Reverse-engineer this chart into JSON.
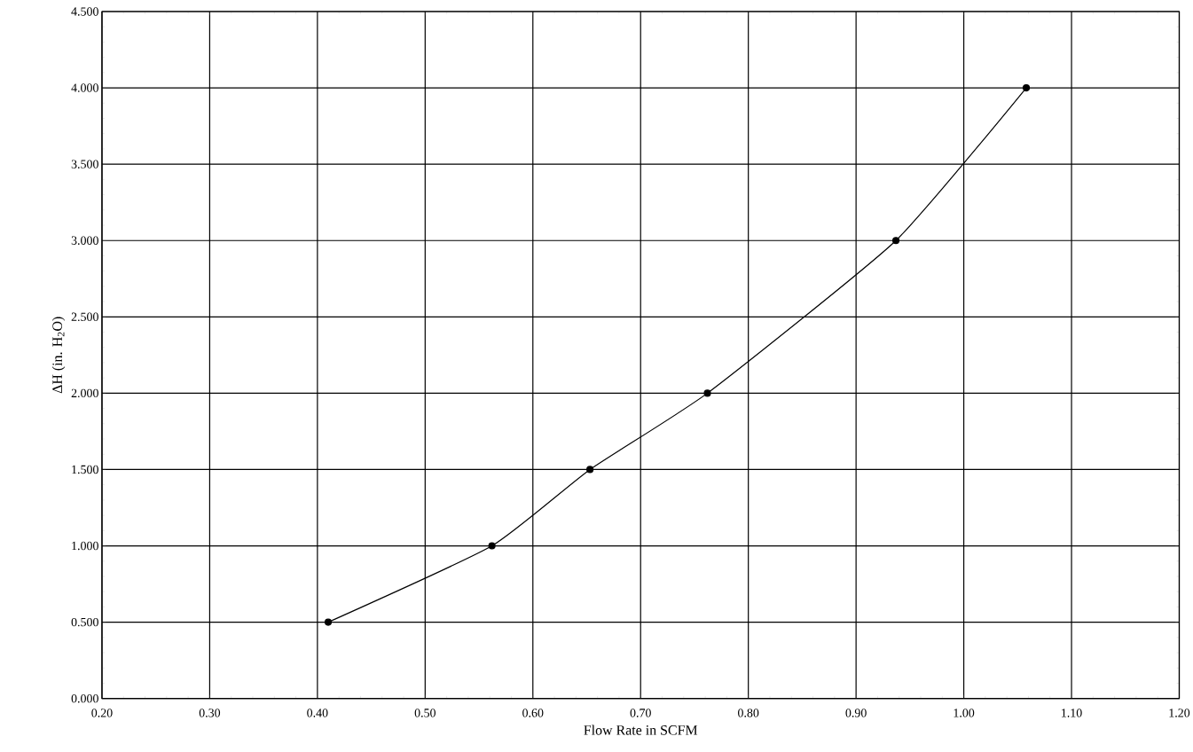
{
  "chart_data": {
    "type": "line",
    "xlabel": "Flow Rate in SCFM",
    "ylabel": "ΔH (in. H$_{2}$O)",
    "x": [
      0.41,
      0.562,
      0.653,
      0.762,
      0.937,
      1.058
    ],
    "series": [
      {
        "color": "#000000",
        "values": [
          0.5,
          1.0,
          1.5,
          2.0,
          3.0,
          4.0
        ]
      }
    ],
    "xlim": [
      0.2,
      1.2
    ],
    "xticks": [
      {
        "value": 0.2,
        "label": "0.20"
      },
      {
        "value": 0.3,
        "label": "0.30"
      },
      {
        "value": 0.4,
        "label": "0.40"
      },
      {
        "value": 0.5,
        "label": "0.50"
      },
      {
        "value": 0.6,
        "label": "0.60"
      },
      {
        "value": 0.7,
        "label": "0.70"
      },
      {
        "value": 0.8,
        "label": "0.80"
      },
      {
        "value": 0.9,
        "label": "0.90"
      },
      {
        "value": 1.0,
        "label": "1.00"
      },
      {
        "value": 1.1,
        "label": "1.10"
      },
      {
        "value": 1.2,
        "label": "1.20"
      }
    ],
    "ylim": [
      0,
      4.5
    ],
    "yticks": [
      {
        "value": 0,
        "label": "0.000"
      },
      {
        "value": 0.5,
        "label": "0.500"
      },
      {
        "value": 1.0,
        "label": "1.000"
      },
      {
        "value": 1.5,
        "label": "1.500"
      },
      {
        "value": 2.0,
        "label": "2.000"
      },
      {
        "value": 2.5,
        "label": "2.500"
      },
      {
        "value": 3.0,
        "label": "3.000"
      },
      {
        "value": 3.5,
        "label": "3.500"
      },
      {
        "value": 4.0,
        "label": "4.000"
      },
      {
        "value": 4.5,
        "label": "4.500"
      }
    ],
    "grid": true,
    "marker": "circle",
    "line_style": "solid"
  }
}
